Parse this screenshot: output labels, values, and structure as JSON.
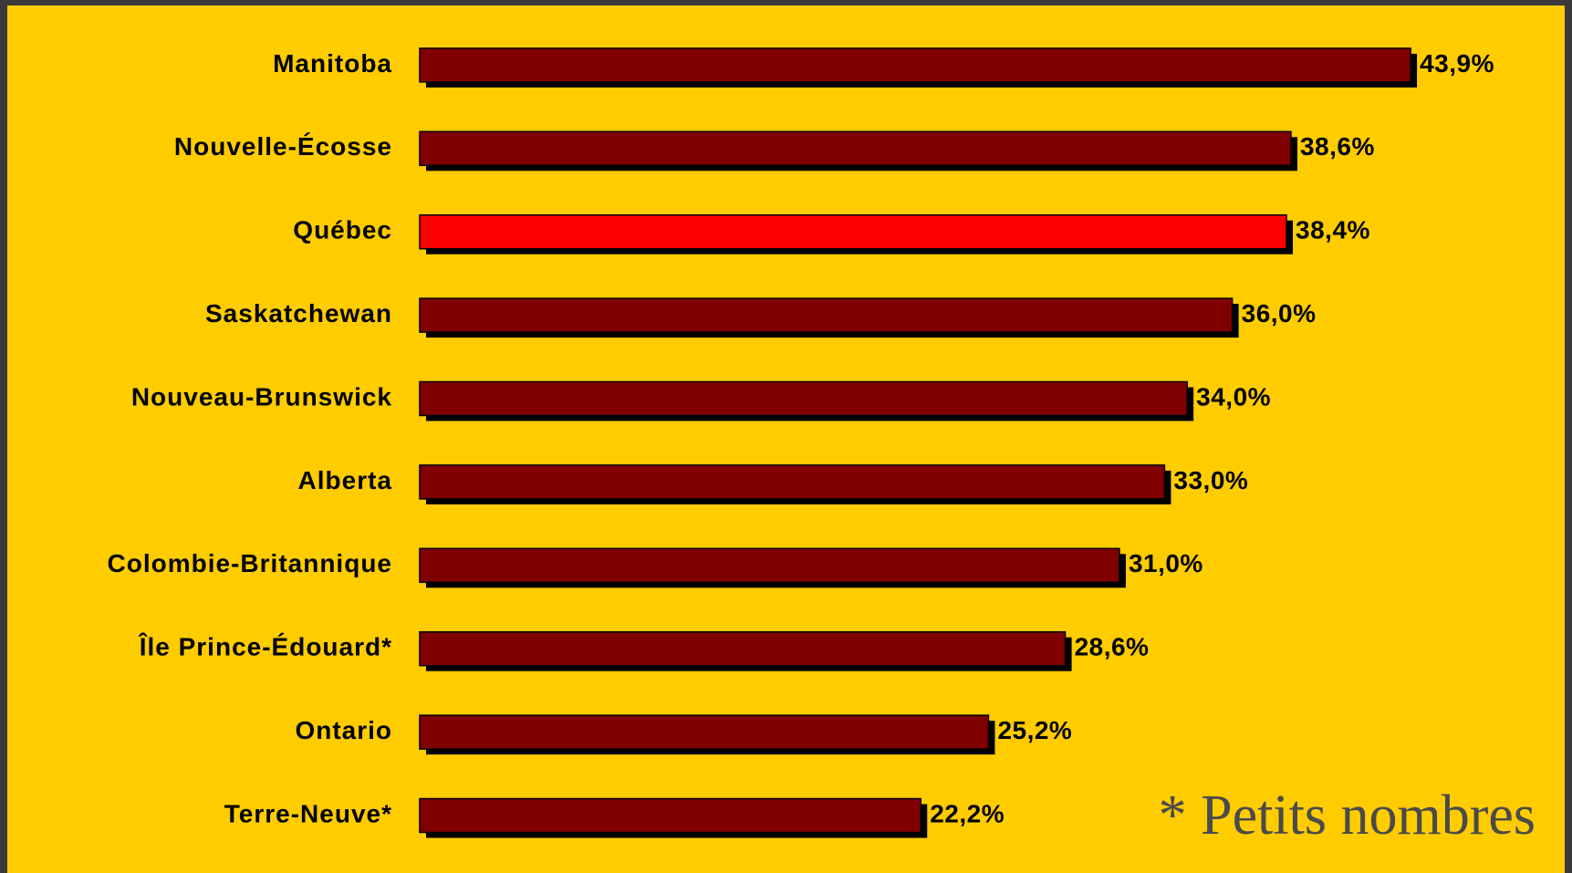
{
  "chart_data": {
    "type": "bar",
    "orientation": "horizontal",
    "categories": [
      "Manitoba",
      "Nouvelle-Écosse",
      "Québec",
      "Saskatchewan",
      "Nouveau-Brunswick",
      "Alberta",
      "Colombie-Britannique",
      "Île Prince-Édouard*",
      "Ontario",
      "Terre-Neuve*"
    ],
    "values": [
      43.9,
      38.6,
      38.4,
      36.0,
      34.0,
      33.0,
      31.0,
      28.6,
      25.2,
      22.2
    ],
    "value_labels": [
      "43,9%",
      "38,6%",
      "38,4%",
      "36,0%",
      "34,0%",
      "33,0%",
      "31,0%",
      "28,6%",
      "25,2%",
      "22,2%"
    ],
    "colors": [
      "#800000",
      "#800000",
      "#ff0000",
      "#800000",
      "#800000",
      "#800000",
      "#800000",
      "#800000",
      "#800000",
      "#800000"
    ],
    "xlim": [
      0,
      50
    ],
    "annotation": "* Petits nombres"
  }
}
